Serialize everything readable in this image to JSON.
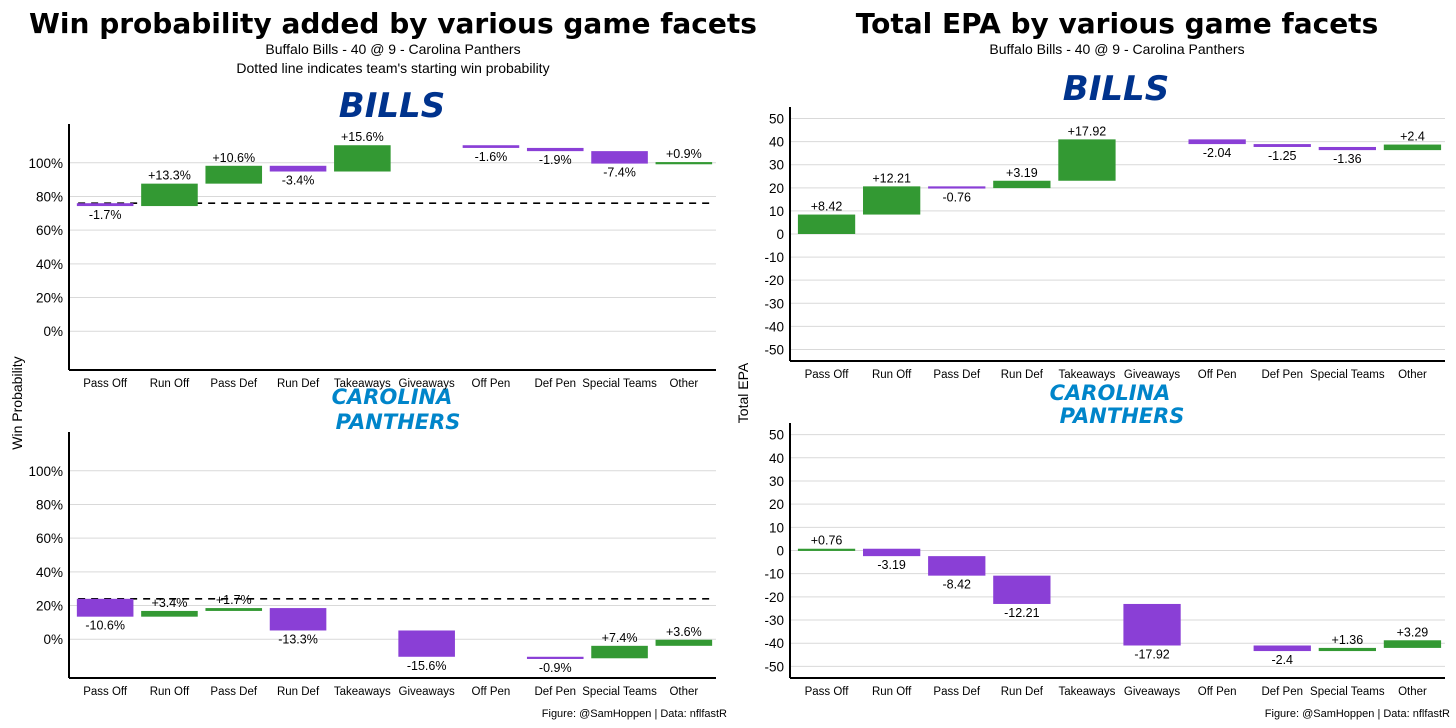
{
  "left": {
    "title": "Win probability added by various game facets",
    "subtitle1": "Buffalo Bills - 40 @ 9 - Carolina Panthers",
    "subtitle2": "Dotted line indicates team's starting win probability",
    "ylabel": "Win Probability",
    "caption": "Figure: @SamHoppen | Data: nflfastR"
  },
  "right": {
    "title": "Total EPA by various game facets",
    "subtitle1": "Buffalo Bills - 40 @ 9 - Carolina Panthers",
    "ylabel": "Total EPA",
    "caption": "Figure: @SamHoppen | Data: nflfastR"
  },
  "teams": {
    "bills": "BILLS",
    "panthers_line1": "CAROLINA",
    "panthers_line2": "PANTHERS",
    "bills_color": "#00338D",
    "panthers_color": "#0085CA"
  },
  "colors": {
    "positive": "#339933",
    "negative": "#8a3fd6",
    "grid": "#d9d9d9"
  },
  "chart_data": [
    {
      "type": "waterfall",
      "panel": "Win probability - Bills",
      "categories": [
        "Pass Off",
        "Run Off",
        "Pass Def",
        "Run Def",
        "Takeaways",
        "Giveaways",
        "Off Pen",
        "Def Pen",
        "Special Teams",
        "Other"
      ],
      "values": [
        -1.7,
        13.3,
        10.6,
        -3.4,
        15.6,
        null,
        -1.6,
        -1.9,
        -7.4,
        0.9
      ],
      "labels": [
        "-1.7%",
        "+13.3%",
        "+10.6%",
        "-3.4%",
        "+15.6%",
        "",
        "-1.6%",
        "-1.9%",
        "-7.4%",
        "+0.9%"
      ],
      "start": 76,
      "start_line": 76,
      "ylabel": "Win Probability",
      "yticks": [
        0,
        20,
        40,
        60,
        80,
        100
      ],
      "yticklabels": [
        "0%",
        "20%",
        "40%",
        "60%",
        "80%",
        "100%"
      ],
      "ylim": [
        -23,
        123
      ]
    },
    {
      "type": "waterfall",
      "panel": "Win probability - Panthers",
      "categories": [
        "Pass Off",
        "Run Off",
        "Pass Def",
        "Run Def",
        "Takeaways",
        "Giveaways",
        "Off Pen",
        "Def Pen",
        "Special Teams",
        "Other"
      ],
      "values": [
        -10.6,
        3.4,
        1.7,
        -13.3,
        null,
        -15.6,
        null,
        -0.9,
        7.4,
        3.6
      ],
      "labels": [
        "-10.6%",
        "+3.4%",
        "+1.7%",
        "-13.3%",
        "",
        "-15.6%",
        "",
        "-0.9%",
        "+7.4%",
        "+3.6%"
      ],
      "start": 24,
      "start_line": 24,
      "ylabel": "Win Probability",
      "yticks": [
        0,
        20,
        40,
        60,
        80,
        100
      ],
      "yticklabels": [
        "0%",
        "20%",
        "40%",
        "60%",
        "80%",
        "100%"
      ],
      "ylim": [
        -23,
        123
      ]
    },
    {
      "type": "waterfall",
      "panel": "Total EPA - Bills",
      "categories": [
        "Pass Off",
        "Run Off",
        "Pass Def",
        "Run Def",
        "Takeaways",
        "Giveaways",
        "Off Pen",
        "Def Pen",
        "Special Teams",
        "Other"
      ],
      "values": [
        8.42,
        12.21,
        -0.76,
        3.19,
        17.92,
        null,
        -2.04,
        -1.25,
        -1.36,
        2.4
      ],
      "labels": [
        "+8.42",
        "+12.21",
        "-0.76",
        "+3.19",
        "+17.92",
        "",
        "-2.04",
        "-1.25",
        "-1.36",
        "+2.4"
      ],
      "start": 0,
      "ylabel": "Total EPA",
      "yticks": [
        -50,
        -40,
        -30,
        -20,
        -10,
        0,
        10,
        20,
        30,
        40,
        50
      ],
      "yticklabels": [
        "-50",
        "-40",
        "-30",
        "-20",
        "-10",
        "0",
        "10",
        "20",
        "30",
        "40",
        "50"
      ],
      "ylim": [
        -55,
        55
      ]
    },
    {
      "type": "waterfall",
      "panel": "Total EPA - Panthers",
      "categories": [
        "Pass Off",
        "Run Off",
        "Pass Def",
        "Run Def",
        "Takeaways",
        "Giveaways",
        "Off Pen",
        "Def Pen",
        "Special Teams",
        "Other"
      ],
      "values": [
        0.76,
        -3.19,
        -8.42,
        -12.21,
        null,
        -17.92,
        null,
        -2.4,
        1.36,
        3.29
      ],
      "labels": [
        "+0.76",
        "-3.19",
        "-8.42",
        "-12.21",
        "",
        "-17.92",
        "",
        "-2.4",
        "+1.36",
        "+3.29"
      ],
      "start": 0,
      "ylabel": "Total EPA",
      "yticks": [
        -50,
        -40,
        -30,
        -20,
        -10,
        0,
        10,
        20,
        30,
        40,
        50
      ],
      "yticklabels": [
        "-50",
        "-40",
        "-30",
        "-20",
        "-10",
        "0",
        "10",
        "20",
        "30",
        "40",
        "50"
      ],
      "ylim": [
        -55,
        55
      ]
    }
  ]
}
